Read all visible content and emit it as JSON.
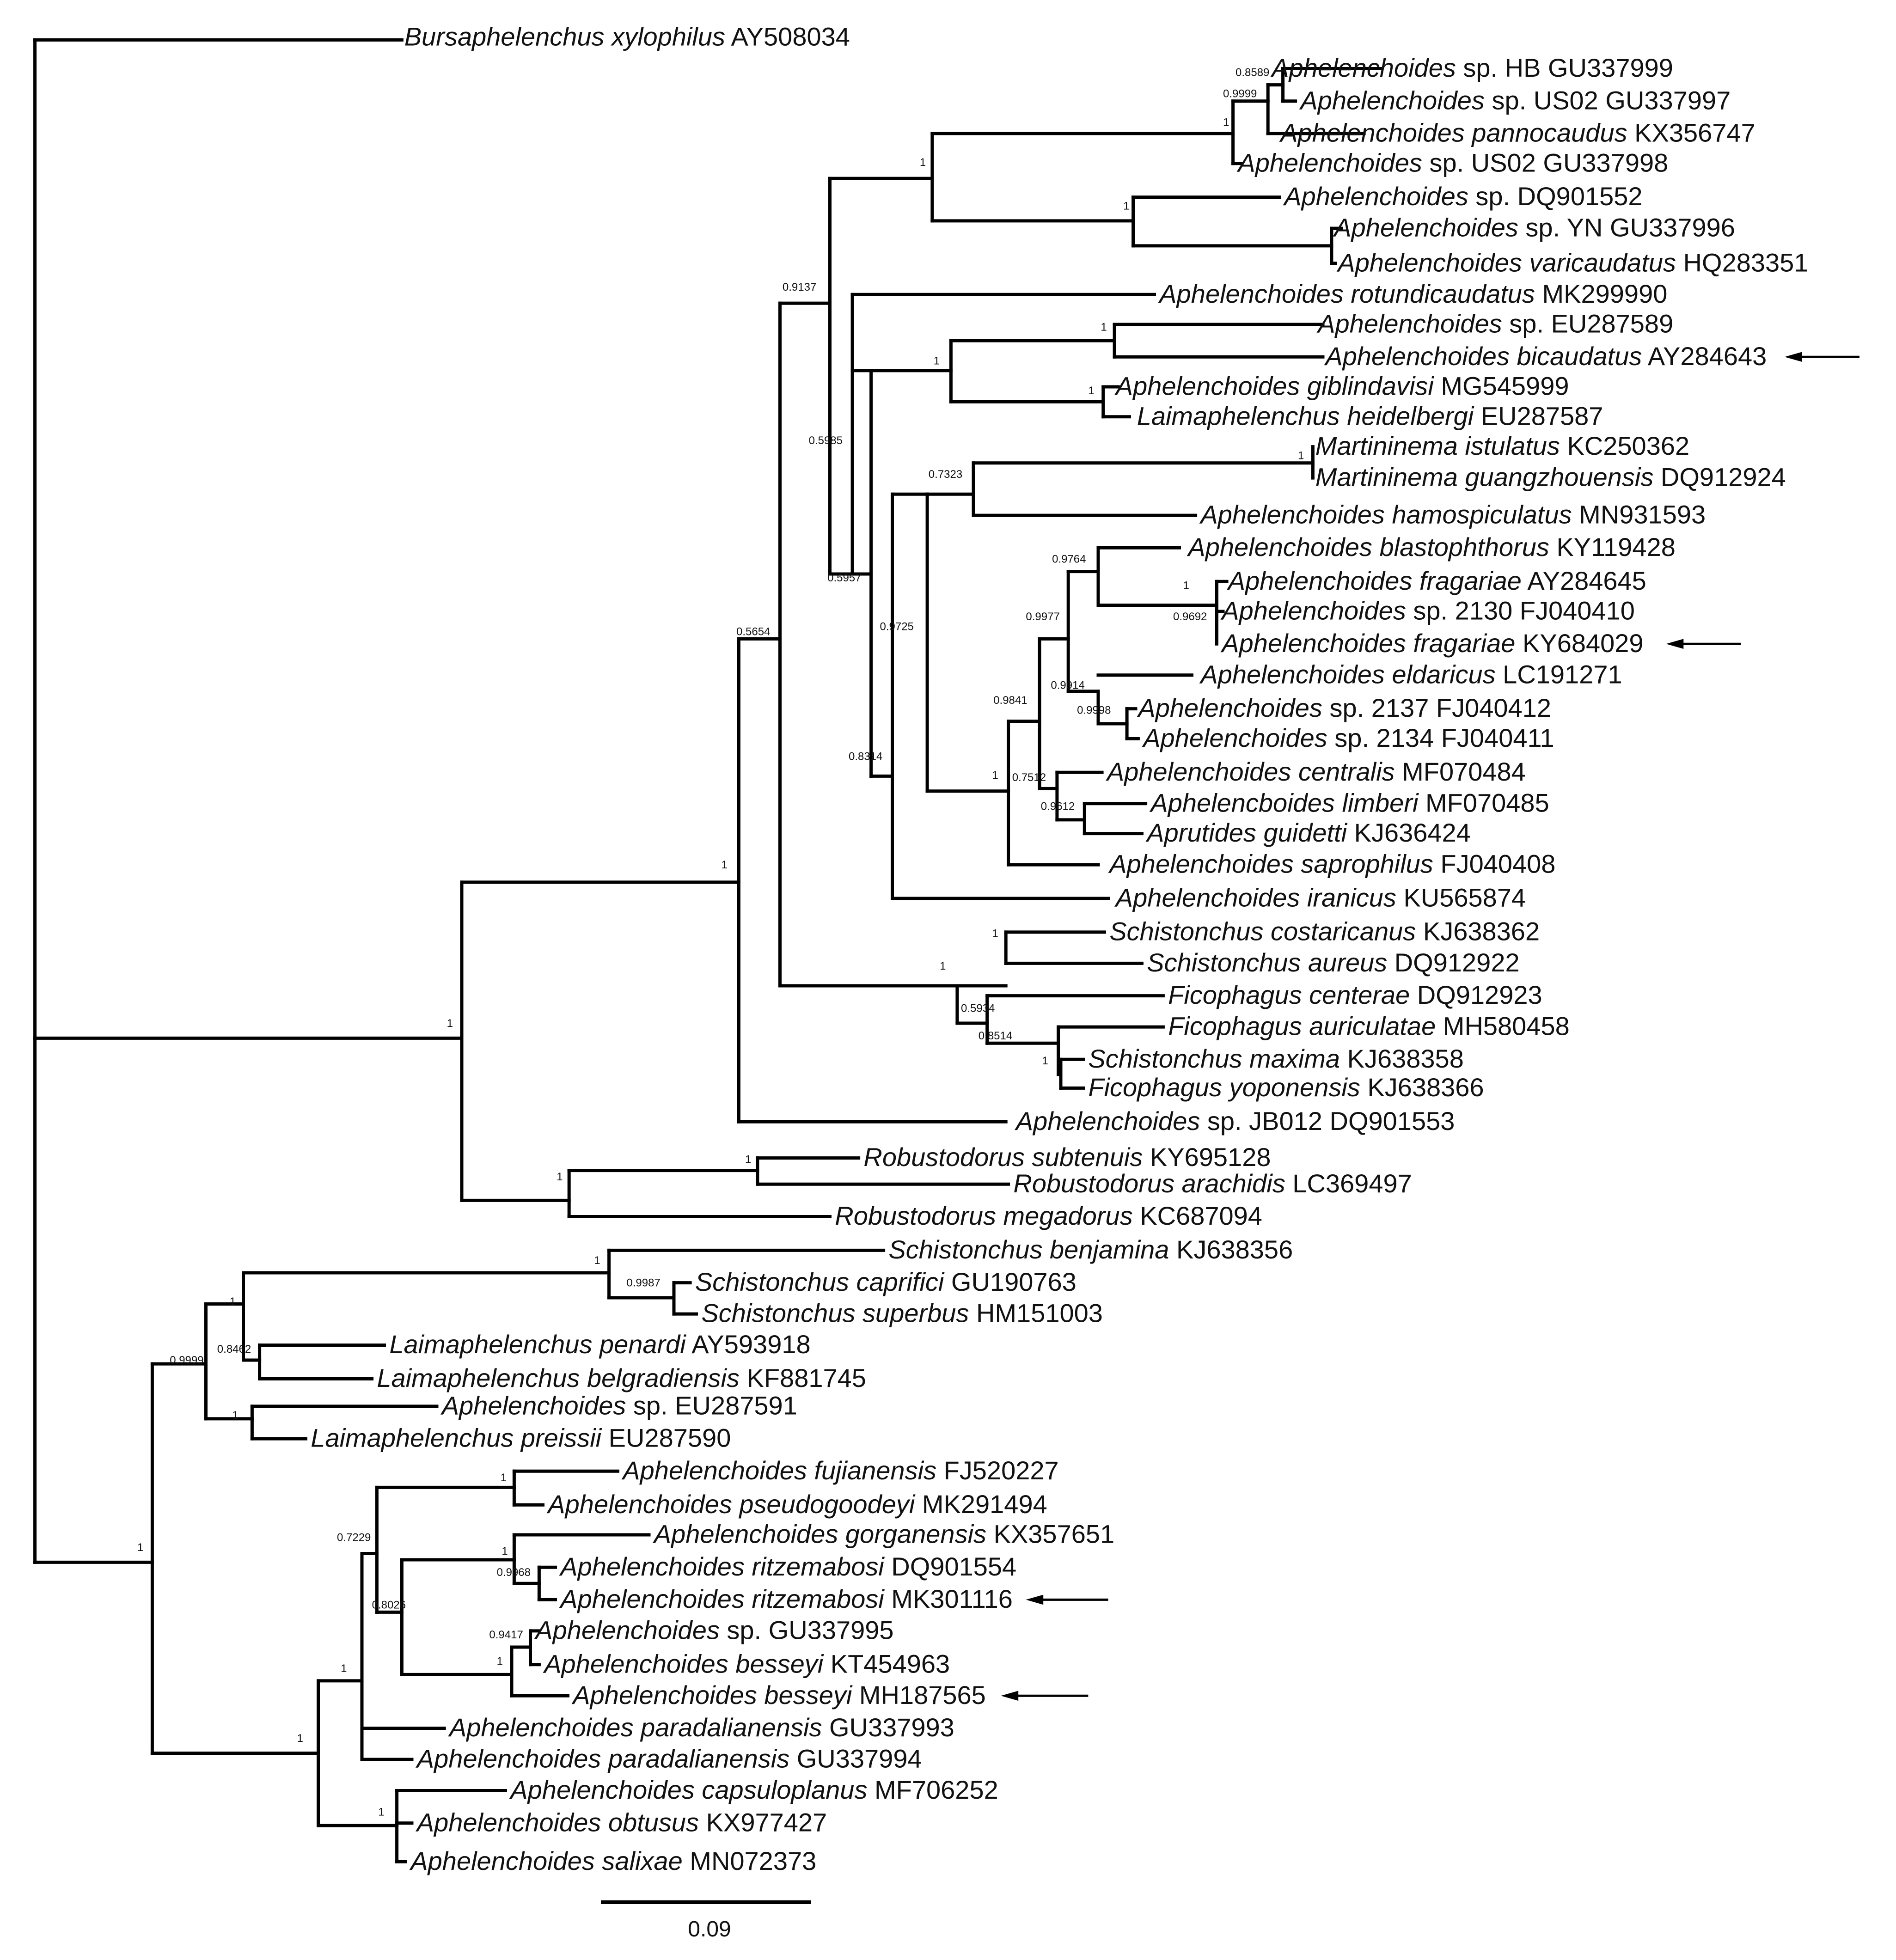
{
  "figure": {
    "type": "phylogenetic_tree",
    "scale_bar_label": "0.09",
    "colors": {
      "branch": "#000000",
      "text": "#111111",
      "background": "#ffffff"
    }
  },
  "taxa": [
    {
      "key": "bx",
      "genus": "Bursaphelenchus",
      "epithet": "xylophilus",
      "accession": "AY508034"
    },
    {
      "key": "a01",
      "genus": "Aphelenchoides",
      "epithet": "sp. HB",
      "accession": "GU337999"
    },
    {
      "key": "a02",
      "genus": "Aphelenchoides",
      "epithet": "sp. US02",
      "accession": "GU337997"
    },
    {
      "key": "a03",
      "genus": "Aphelenchoides",
      "epithet": "pannocaudus",
      "accession": "KX356747"
    },
    {
      "key": "a04",
      "genus": "Aphelenchoides",
      "epithet": "sp. US02",
      "accession": "GU337998"
    },
    {
      "key": "a05",
      "genus": "Aphelenchoides",
      "epithet": "sp.",
      "accession": "DQ901552"
    },
    {
      "key": "a06",
      "genus": "Aphelenchoides",
      "epithet": "sp. YN",
      "accession": "GU337996"
    },
    {
      "key": "a07",
      "genus": "Aphelenchoides",
      "epithet": "varicaudatus",
      "accession": "HQ283351"
    },
    {
      "key": "a08",
      "genus": "Aphelenchoides",
      "epithet": "rotundicaudatus",
      "accession": "MK299990"
    },
    {
      "key": "a09",
      "genus": "Aphelenchoides",
      "epithet": "sp.",
      "accession": "EU287589"
    },
    {
      "key": "a10",
      "genus": "Aphelenchoides",
      "epithet": "bicaudatus",
      "accession": "AY284643",
      "arrow": true
    },
    {
      "key": "a11",
      "genus": "Aphelenchoides",
      "epithet": "giblindavisi",
      "accession": "MG545999"
    },
    {
      "key": "a12",
      "genus": "Laimaphelenchus",
      "epithet": "heidelbergi",
      "accession": "EU287587"
    },
    {
      "key": "a13",
      "genus": "Martininema",
      "epithet": "istulatus",
      "accession": "KC250362"
    },
    {
      "key": "a14",
      "genus": "Martininema",
      "epithet": "guangzhouensis",
      "accession": "DQ912924"
    },
    {
      "key": "a15",
      "genus": "Aphelenchoides",
      "epithet": "hamospiculatus",
      "accession": "MN931593"
    },
    {
      "key": "a16",
      "genus": "Aphelenchoides",
      "epithet": "blastophthorus",
      "accession": "KY119428"
    },
    {
      "key": "a17",
      "genus": "Aphelenchoides",
      "epithet": "fragariae",
      "accession": "AY284645"
    },
    {
      "key": "a18",
      "genus": "Aphelenchoides",
      "epithet": "sp. 2130",
      "accession": "FJ040410"
    },
    {
      "key": "a19",
      "genus": "Aphelenchoides",
      "epithet": "fragariae",
      "accession": "KY684029",
      "arrow": true
    },
    {
      "key": "a20",
      "genus": "Aphelenchoides",
      "epithet": "eldaricus",
      "accession": "LC191271"
    },
    {
      "key": "a21",
      "genus": "Aphelenchoides",
      "epithet": "sp. 2137",
      "accession": "FJ040412"
    },
    {
      "key": "a22",
      "genus": "Aphelenchoides",
      "epithet": "sp. 2134",
      "accession": "FJ040411"
    },
    {
      "key": "a23",
      "genus": "Aphelenchoides",
      "epithet": "centralis",
      "accession": "MF070484"
    },
    {
      "key": "a24",
      "genus": "Aphelencboides",
      "epithet": "limberi",
      "accession": "MF070485"
    },
    {
      "key": "a25",
      "genus": "Aprutides",
      "epithet": "guidetti",
      "accession": "KJ636424"
    },
    {
      "key": "a26",
      "genus": "Aphelenchoides",
      "epithet": "saprophilus",
      "accession": "FJ040408"
    },
    {
      "key": "a27",
      "genus": "Aphelenchoides",
      "epithet": "iranicus",
      "accession": "KU565874"
    },
    {
      "key": "a28",
      "genus": "Schistonchus",
      "epithet": "costaricanus",
      "accession": "KJ638362"
    },
    {
      "key": "a29",
      "genus": "Schistonchus",
      "epithet": "aureus",
      "accession": "DQ912922"
    },
    {
      "key": "a30",
      "genus": "Ficophagus",
      "epithet": "centerae",
      "accession": "DQ912923"
    },
    {
      "key": "a31",
      "genus": "Ficophagus",
      "epithet": "auriculatae",
      "accession": "MH580458"
    },
    {
      "key": "a32",
      "genus": "Schistonchus",
      "epithet": "maxima",
      "accession": "KJ638358"
    },
    {
      "key": "a33",
      "genus": "Ficophagus",
      "epithet": "yoponensis",
      "accession": "KJ638366"
    },
    {
      "key": "a34",
      "genus": "Aphelenchoides",
      "epithet": "sp. JB012",
      "accession": "DQ901553"
    },
    {
      "key": "a35",
      "genus": "Robustodorus",
      "epithet": "subtenuis",
      "accession": "KY695128"
    },
    {
      "key": "a36",
      "genus": "Robustodorus",
      "epithet": "arachidis",
      "accession": "LC369497"
    },
    {
      "key": "a37",
      "genus": "Robustodorus",
      "epithet": "megadorus",
      "accession": "KC687094"
    },
    {
      "key": "b01",
      "genus": "Schistonchus",
      "epithet": "benjamina",
      "accession": "KJ638356"
    },
    {
      "key": "b02",
      "genus": "Schistonchus",
      "epithet": "caprifici",
      "accession": "GU190763"
    },
    {
      "key": "b03",
      "genus": "Schistonchus",
      "epithet": "superbus",
      "accession": "HM151003"
    },
    {
      "key": "b04",
      "genus": "Laimaphelenchus",
      "epithet": "penardi",
      "accession": "AY593918"
    },
    {
      "key": "b05",
      "genus": "Laimaphelenchus",
      "epithet": "belgradiensis",
      "accession": "KF881745"
    },
    {
      "key": "b06",
      "genus": "Aphelenchoides",
      "epithet": "sp.",
      "accession": "EU287591"
    },
    {
      "key": "b07",
      "genus": "Laimaphelenchus",
      "epithet": "preissii",
      "accession": "EU287590"
    },
    {
      "key": "b08",
      "genus": "Aphelenchoides",
      "epithet": "fujianensis",
      "accession": "FJ520227"
    },
    {
      "key": "b09",
      "genus": "Aphelenchoides",
      "epithet": "pseudogoodeyi",
      "accession": "MK291494"
    },
    {
      "key": "b10",
      "genus": "Aphelenchoides",
      "epithet": "gorganensis",
      "accession": "KX357651"
    },
    {
      "key": "b11",
      "genus": "Aphelenchoides",
      "epithet": "ritzemabosi",
      "accession": "DQ901554"
    },
    {
      "key": "b12",
      "genus": "Aphelenchoides",
      "epithet": "ritzemabosi",
      "accession": "MK301116",
      "arrow": true
    },
    {
      "key": "b13",
      "genus": "Aphelenchoides",
      "epithet": "sp.",
      "accession": "GU337995"
    },
    {
      "key": "b14",
      "genus": "Aphelenchoides",
      "epithet": "besseyi",
      "accession": "KT454963"
    },
    {
      "key": "b15",
      "genus": "Aphelenchoides",
      "epithet": "besseyi",
      "accession": "MH187565",
      "arrow": true
    },
    {
      "key": "b16",
      "genus": "Aphelenchoides",
      "epithet": "paradalianensis",
      "accession": "GU337993"
    },
    {
      "key": "b17",
      "genus": "Aphelenchoides",
      "epithet": "paradalianensis",
      "accession": "GU337994"
    },
    {
      "key": "b18",
      "genus": "Aphelenchoides",
      "epithet": "capsuloplanus",
      "accession": "MF706252"
    },
    {
      "key": "b19",
      "genus": "Aphelenchoides",
      "epithet": "obtusus",
      "accession": "KX977427"
    },
    {
      "key": "b20",
      "genus": "Aphelenchoides",
      "epithet": "salixae",
      "accession": "MN072373"
    }
  ],
  "supports": [
    {
      "key": "s01",
      "value": "0.8589"
    },
    {
      "key": "s02",
      "value": "0.9999"
    },
    {
      "key": "s03",
      "value": "1"
    },
    {
      "key": "s04",
      "value": "1"
    },
    {
      "key": "s05",
      "value": "1"
    },
    {
      "key": "s06",
      "value": "0.9137"
    },
    {
      "key": "s07",
      "value": "1"
    },
    {
      "key": "s08",
      "value": "1"
    },
    {
      "key": "s09",
      "value": "1"
    },
    {
      "key": "s10",
      "value": "0.5985"
    },
    {
      "key": "s11",
      "value": "0.7323"
    },
    {
      "key": "s12",
      "value": "1"
    },
    {
      "key": "s13",
      "value": "0.5957"
    },
    {
      "key": "s14",
      "value": "0.9764"
    },
    {
      "key": "s15",
      "value": "1"
    },
    {
      "key": "s16",
      "value": "0.9692"
    },
    {
      "key": "s17",
      "value": "0.9977"
    },
    {
      "key": "s18",
      "value": "0.9725"
    },
    {
      "key": "s19",
      "value": "0.5654"
    },
    {
      "key": "s20",
      "value": "0.9914"
    },
    {
      "key": "s21",
      "value": "0.9841"
    },
    {
      "key": "s22",
      "value": "0.9998"
    },
    {
      "key": "s23",
      "value": "0.8314"
    },
    {
      "key": "s24",
      "value": "1"
    },
    {
      "key": "s25",
      "value": "0.7512"
    },
    {
      "key": "s26",
      "value": "0.9612"
    },
    {
      "key": "s27",
      "value": "1"
    },
    {
      "key": "s28",
      "value": "1"
    },
    {
      "key": "s29",
      "value": "1"
    },
    {
      "key": "s30",
      "value": "0.5934"
    },
    {
      "key": "s31",
      "value": "0.8514"
    },
    {
      "key": "s32",
      "value": "1"
    },
    {
      "key": "s33",
      "value": "1"
    },
    {
      "key": "s34",
      "value": "1"
    },
    {
      "key": "s35",
      "value": "1"
    },
    {
      "key": "s36",
      "value": "1"
    },
    {
      "key": "s37",
      "value": "0.9987"
    },
    {
      "key": "s38",
      "value": "1"
    },
    {
      "key": "s39",
      "value": "0.9999"
    },
    {
      "key": "s40",
      "value": "0.8462"
    },
    {
      "key": "s41",
      "value": "1"
    },
    {
      "key": "s42",
      "value": "1"
    },
    {
      "key": "s43",
      "value": "0.7229"
    },
    {
      "key": "s44",
      "value": "1"
    },
    {
      "key": "s45",
      "value": "0.9968"
    },
    {
      "key": "s46",
      "value": "0.8026"
    },
    {
      "key": "s47",
      "value": "0.9417"
    },
    {
      "key": "s48",
      "value": "1"
    },
    {
      "key": "s49",
      "value": "1"
    },
    {
      "key": "s50",
      "value": "1"
    },
    {
      "key": "s51",
      "value": "1"
    },
    {
      "key": "s52",
      "value": "1"
    }
  ]
}
